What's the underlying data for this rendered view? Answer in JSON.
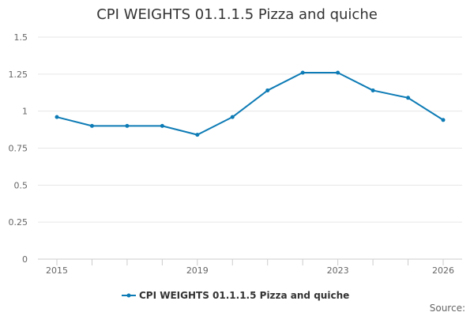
{
  "chart_data": {
    "type": "line",
    "title": "CPI WEIGHTS 01.1.1.5 Pizza and quiche",
    "x": [
      2015,
      2016,
      2017,
      2018,
      2019,
      2020,
      2021,
      2022,
      2023,
      2024,
      2025,
      2026
    ],
    "x_tick_labels": [
      "2015",
      "2019",
      "2023",
      "2026"
    ],
    "y_tick_labels": [
      "0",
      "0.25",
      "0.5",
      "0.75",
      "1",
      "1.25",
      "1.5"
    ],
    "ylim": [
      0,
      1.5
    ],
    "grid": true,
    "legend_position": "bottom",
    "series": [
      {
        "name": "CPI WEIGHTS 01.1.1.5 Pizza and quiche",
        "color": "#0d7bb5",
        "values": [
          0.96,
          0.9,
          0.9,
          0.9,
          0.84,
          0.96,
          1.14,
          1.26,
          1.26,
          1.14,
          1.09,
          0.94
        ]
      }
    ],
    "source_label": "Source:"
  }
}
